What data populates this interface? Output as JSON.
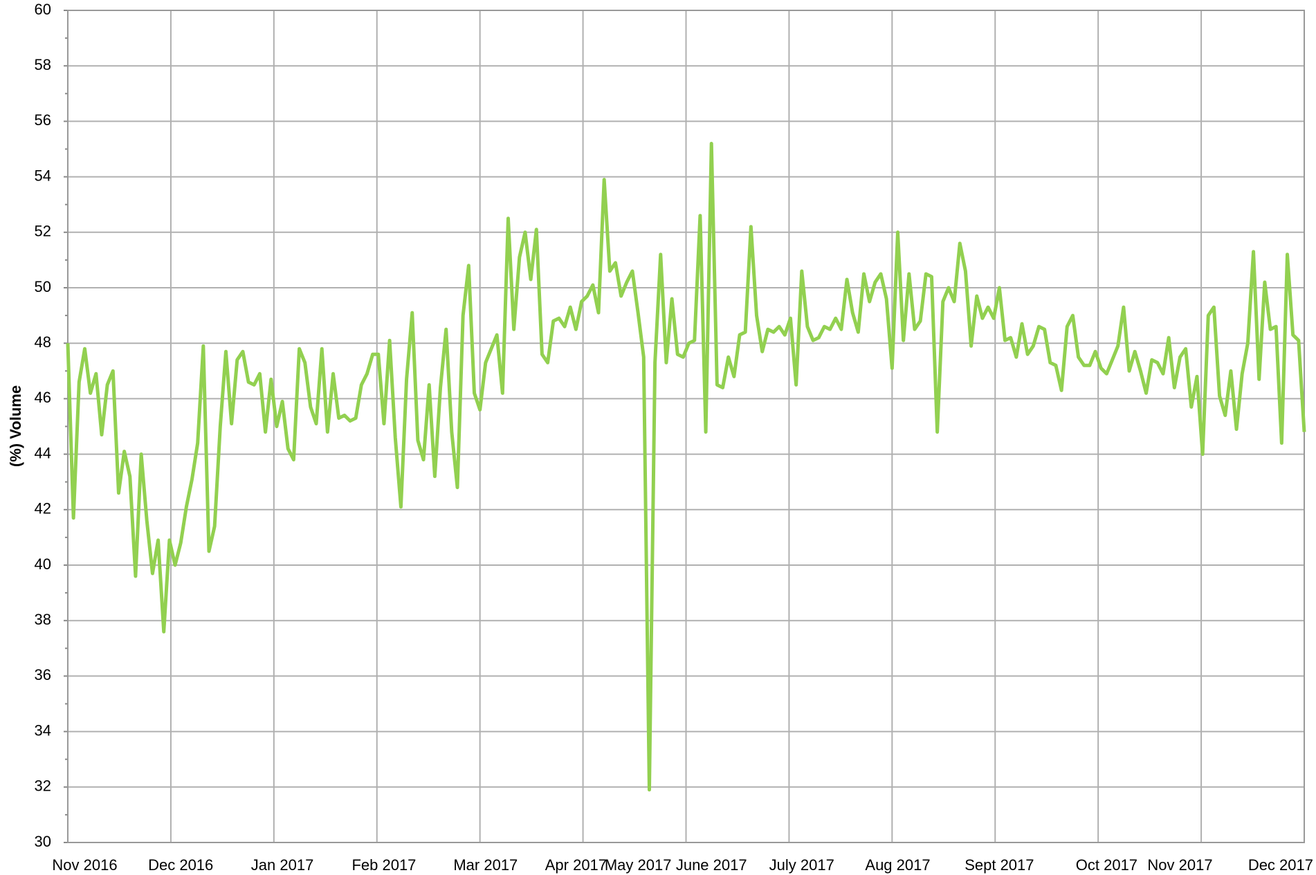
{
  "chart_data": {
    "type": "line",
    "y_label": "(%) Volume",
    "color": "#92d050",
    "categories": [
      null,
      null,
      null,
      "Nov 2016",
      null,
      null,
      null,
      null,
      null,
      null,
      null,
      null,
      null,
      null,
      null,
      null,
      null,
      null,
      null,
      null,
      "Dec 2016",
      null,
      null,
      null,
      null,
      null,
      null,
      null,
      null,
      null,
      null,
      null,
      null,
      null,
      null,
      null,
      null,
      null,
      "Jan 2017",
      null,
      null,
      null,
      null,
      null,
      null,
      null,
      null,
      null,
      null,
      null,
      null,
      null,
      null,
      null,
      null,
      null,
      "Feb 2017",
      null,
      null,
      null,
      null,
      null,
      null,
      null,
      null,
      null,
      null,
      null,
      null,
      null,
      null,
      null,
      null,
      null,
      "Mar 2017",
      null,
      null,
      null,
      null,
      null,
      null,
      null,
      null,
      null,
      null,
      null,
      null,
      null,
      null,
      null,
      "Apr 2017",
      null,
      null,
      null,
      null,
      null,
      null,
      null,
      null,
      null,
      null,
      "May 2017",
      null,
      null,
      null,
      null,
      null,
      null,
      null,
      null,
      null,
      null,
      null,
      null,
      "June 2017",
      null,
      null,
      null,
      null,
      null,
      null,
      null,
      null,
      null,
      null,
      null,
      null,
      null,
      null,
      null,
      "July 2017",
      null,
      null,
      null,
      null,
      null,
      null,
      null,
      null,
      null,
      null,
      null,
      null,
      null,
      null,
      null,
      null,
      "Aug 2017",
      null,
      null,
      null,
      null,
      null,
      null,
      null,
      null,
      null,
      null,
      null,
      null,
      null,
      null,
      null,
      null,
      null,
      "Sept 2017",
      null,
      null,
      null,
      null,
      null,
      null,
      null,
      null,
      null,
      null,
      null,
      null,
      null,
      null,
      null,
      null,
      null,
      null,
      "Oct 2017",
      null,
      null,
      null,
      null,
      null,
      null,
      null,
      null,
      null,
      null,
      null,
      null,
      "Nov 2017",
      null,
      null,
      null,
      null,
      null,
      null,
      null,
      null,
      null,
      null,
      null,
      null,
      null,
      null,
      null,
      null,
      null,
      null,
      "Dec 2017",
      null,
      null,
      null
    ],
    "values": [
      48,
      41.7,
      46.6,
      47.8,
      46.2,
      46.9,
      44.7,
      46.5,
      47,
      42.6,
      44.1,
      43.2,
      39.6,
      44,
      41.6,
      39.7,
      40.9,
      37.6,
      40.9,
      40,
      40.8,
      42.1,
      43.1,
      44.4,
      47.9,
      40.5,
      41.4,
      45,
      47.7,
      45.1,
      47.4,
      47.7,
      46.6,
      46.5,
      46.9,
      44.8,
      46.7,
      45,
      45.9,
      44.2,
      43.8,
      47.8,
      47.3,
      45.7,
      45.1,
      47.8,
      44.8,
      46.9,
      45.3,
      45.4,
      45.2,
      45.3,
      46.5,
      46.9,
      47.6,
      47.6,
      45.1,
      48.1,
      44.6,
      42.1,
      46.7,
      49.1,
      44.5,
      43.8,
      46.5,
      43.2,
      46.4,
      48.5,
      44.8,
      42.8,
      49,
      50.8,
      46.2,
      45.6,
      47.3,
      47.8,
      48.3,
      46.2,
      52.5,
      48.5,
      51.1,
      52,
      50.3,
      52.1,
      47.6,
      47.3,
      48.8,
      48.9,
      48.6,
      49.3,
      48.5,
      49.5,
      49.7,
      50.1,
      49.1,
      53.9,
      50.6,
      50.9,
      49.7,
      50.2,
      50.6,
      49.1,
      47.5,
      31.9,
      47.3,
      51.2,
      47.3,
      49.6,
      47.6,
      47.5,
      48,
      48.1,
      52.6,
      44.8,
      55.2,
      46.5,
      46.4,
      47.5,
      46.8,
      48.3,
      48.4,
      52.2,
      49,
      47.7,
      48.5,
      48.4,
      48.6,
      48.3,
      48.9,
      46.5,
      50.6,
      48.6,
      48.1,
      48.2,
      48.6,
      48.5,
      48.9,
      48.5,
      50.3,
      49.1,
      48.4,
      50.5,
      49.5,
      50.2,
      50.5,
      49.6,
      47.1,
      52,
      48.1,
      50.5,
      48.5,
      48.8,
      50.5,
      50.4,
      44.8,
      49.5,
      50,
      49.5,
      51.6,
      50.6,
      47.9,
      49.7,
      48.9,
      49.3,
      48.9,
      50,
      48.1,
      48.2,
      47.5,
      48.7,
      47.6,
      47.9,
      48.6,
      48.5,
      47.3,
      47.2,
      46.3,
      48.6,
      49,
      47.5,
      47.2,
      47.2,
      47.7,
      47.1,
      46.9,
      47.4,
      47.9,
      49.3,
      47,
      47.7,
      47,
      46.2,
      47.4,
      47.3,
      46.9,
      48.2,
      46.4,
      47.5,
      47.8,
      45.7,
      46.8,
      44,
      49,
      49.3,
      46.1,
      45.4,
      47,
      44.9,
      46.9,
      48,
      51.3,
      46.7,
      50.2,
      48.5,
      48.6,
      44.4,
      51.2,
      48.3,
      48.1,
      44.8
    ],
    "ylim": [
      30,
      60
    ],
    "yticks": [
      30,
      32,
      34,
      36,
      38,
      40,
      42,
      44,
      46,
      48,
      50,
      52,
      54,
      56,
      58,
      60
    ],
    "grid": true
  }
}
